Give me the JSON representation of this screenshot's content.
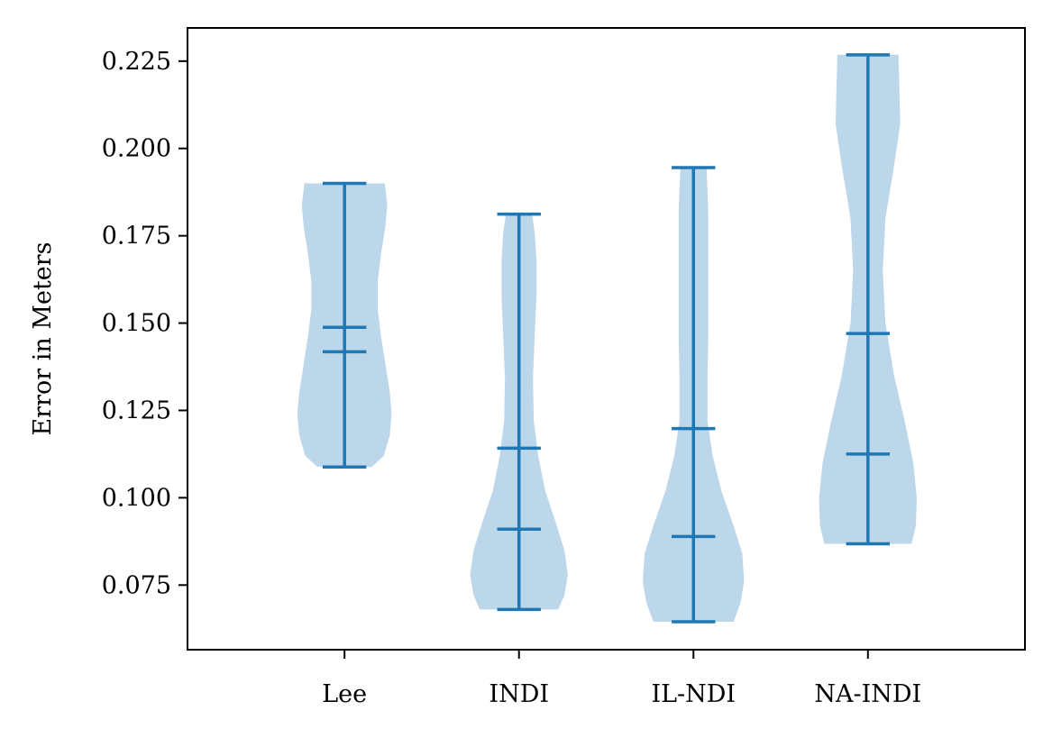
{
  "chart_data": {
    "type": "violin",
    "categories": [
      "Lee",
      "INDI",
      "IL-NDI",
      "NA-INDI"
    ],
    "ylabel": "Error in Meters",
    "xlabel": "",
    "ylim": [
      0.0565,
      0.2345
    ],
    "yticks": [
      0.075,
      0.1,
      0.125,
      0.15,
      0.175,
      0.2,
      0.225
    ],
    "ytick_labels": [
      "0.075",
      "0.100",
      "0.125",
      "0.150",
      "0.175",
      "0.200",
      "0.225"
    ],
    "colors": {
      "body": "#bcd6ea",
      "line": "#1f77b4"
    },
    "violins": [
      {
        "name": "Lee",
        "min": 0.1088,
        "max": 0.19,
        "mean": 0.1488,
        "median": 0.1418,
        "profile": [
          [
            0.1088,
            0.31
          ],
          [
            0.112,
            0.45
          ],
          [
            0.118,
            0.52
          ],
          [
            0.124,
            0.54
          ],
          [
            0.13,
            0.52
          ],
          [
            0.138,
            0.47
          ],
          [
            0.146,
            0.42
          ],
          [
            0.154,
            0.38
          ],
          [
            0.162,
            0.38
          ],
          [
            0.17,
            0.42
          ],
          [
            0.178,
            0.47
          ],
          [
            0.184,
            0.49
          ],
          [
            0.19,
            0.46
          ]
        ]
      },
      {
        "name": "INDI",
        "min": 0.068,
        "max": 0.1812,
        "mean": 0.1142,
        "median": 0.091,
        "profile": [
          [
            0.068,
            0.45
          ],
          [
            0.072,
            0.52
          ],
          [
            0.078,
            0.56
          ],
          [
            0.085,
            0.52
          ],
          [
            0.093,
            0.42
          ],
          [
            0.102,
            0.3
          ],
          [
            0.112,
            0.22
          ],
          [
            0.122,
            0.17
          ],
          [
            0.134,
            0.16
          ],
          [
            0.146,
            0.18
          ],
          [
            0.158,
            0.2
          ],
          [
            0.168,
            0.2
          ],
          [
            0.176,
            0.18
          ],
          [
            0.1812,
            0.15
          ]
        ]
      },
      {
        "name": "IL-NDI",
        "min": 0.0645,
        "max": 0.1945,
        "mean": 0.1198,
        "median": 0.0889,
        "profile": [
          [
            0.0645,
            0.46
          ],
          [
            0.07,
            0.54
          ],
          [
            0.076,
            0.58
          ],
          [
            0.084,
            0.56
          ],
          [
            0.092,
            0.46
          ],
          [
            0.102,
            0.32
          ],
          [
            0.112,
            0.22
          ],
          [
            0.122,
            0.16
          ],
          [
            0.134,
            0.16
          ],
          [
            0.146,
            0.17
          ],
          [
            0.158,
            0.17
          ],
          [
            0.17,
            0.17
          ],
          [
            0.182,
            0.17
          ],
          [
            0.1945,
            0.15
          ]
        ]
      },
      {
        "name": "NA-INDI",
        "min": 0.0868,
        "max": 0.2268,
        "mean": 0.147,
        "median": 0.1125,
        "profile": [
          [
            0.0868,
            0.5
          ],
          [
            0.092,
            0.55
          ],
          [
            0.1,
            0.56
          ],
          [
            0.11,
            0.52
          ],
          [
            0.122,
            0.42
          ],
          [
            0.135,
            0.3
          ],
          [
            0.15,
            0.2
          ],
          [
            0.165,
            0.17
          ],
          [
            0.18,
            0.2
          ],
          [
            0.195,
            0.3
          ],
          [
            0.207,
            0.37
          ],
          [
            0.218,
            0.36
          ],
          [
            0.2268,
            0.35
          ]
        ]
      }
    ]
  }
}
